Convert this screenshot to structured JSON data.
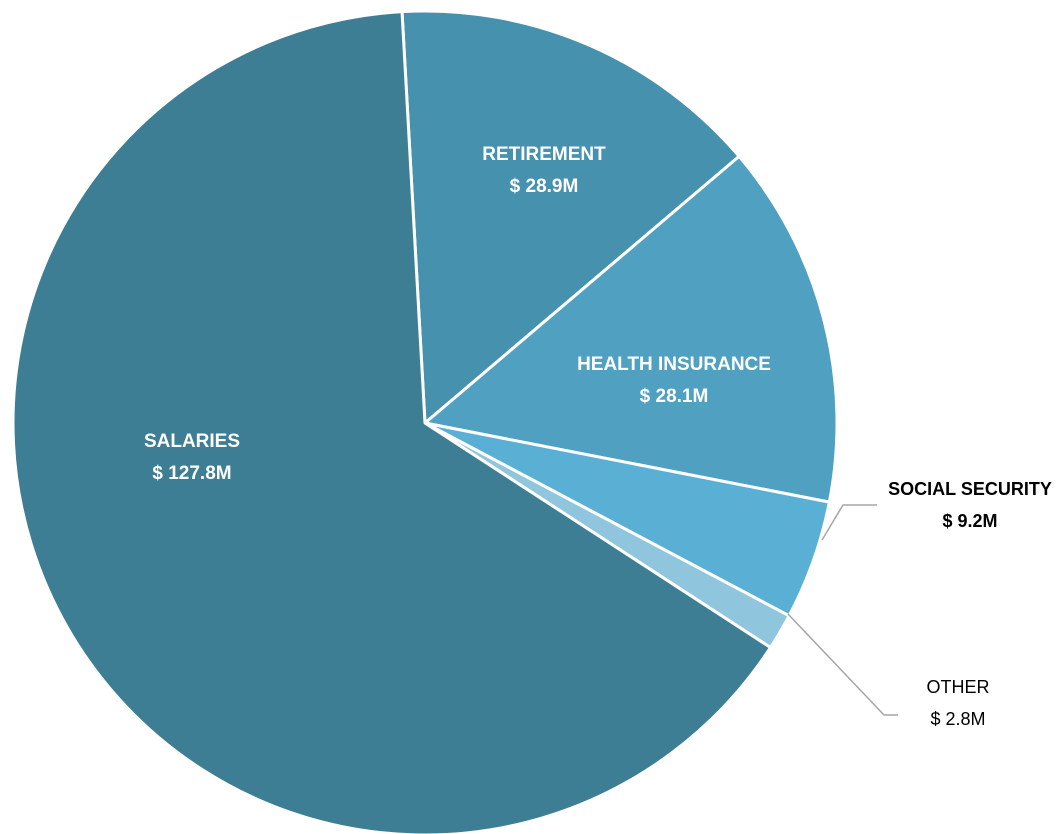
{
  "chart_data": {
    "type": "pie",
    "title": "",
    "slices": [
      {
        "name": "RETIREMENT",
        "value": 28.9,
        "value_label": "$ 28.9M",
        "color": "#4691AE",
        "label_position": "inside"
      },
      {
        "name": "HEALTH INSURANCE",
        "value": 28.1,
        "value_label": "$ 28.1M",
        "color": "#50A0C1",
        "label_position": "inside"
      },
      {
        "name": "SOCIAL SECURITY",
        "value": 9.2,
        "value_label": "$ 9.2M",
        "color": "#5AB0D4",
        "label_position": "outside",
        "label_bold": true
      },
      {
        "name": "OTHER",
        "value": 2.8,
        "value_label": "$ 2.8M",
        "color": "#90C5DE",
        "label_position": "outside",
        "label_bold": false
      },
      {
        "name": "SALARIES",
        "value": 127.8,
        "value_label": "$ 127.8M",
        "color": "#3D7E95",
        "label_position": "inside"
      }
    ],
    "slice_border_color": "#FFFFFF",
    "leader_line_color": "#A6A6A6",
    "legend": "none"
  }
}
